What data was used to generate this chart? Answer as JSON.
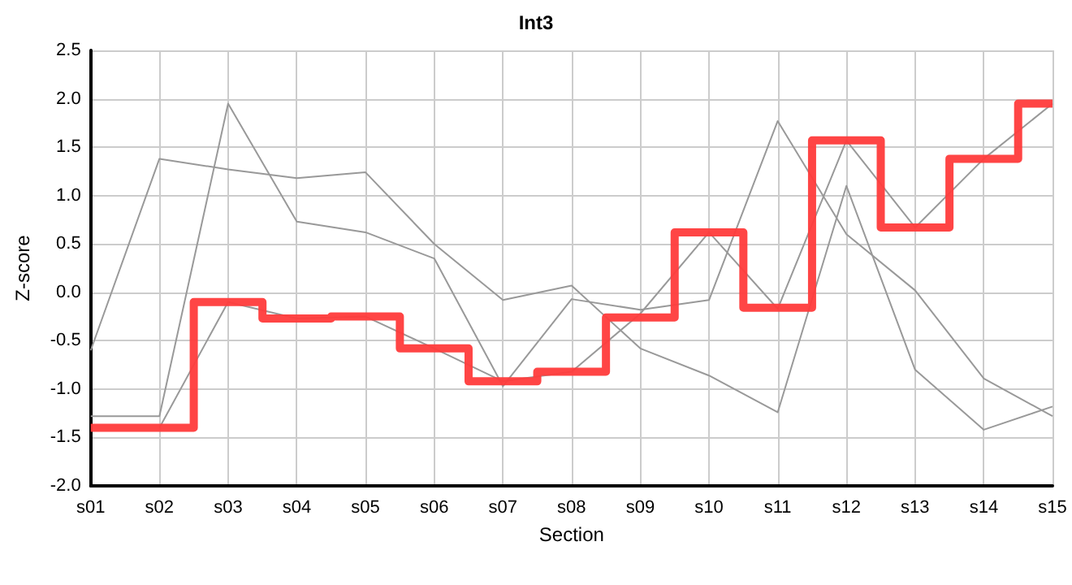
{
  "chart_data": {
    "type": "line",
    "title": "Int3",
    "xlabel": "Section",
    "ylabel": "Z-score",
    "categories": [
      "s01",
      "s02",
      "s03",
      "s04",
      "s05",
      "s06",
      "s07",
      "s08",
      "s09",
      "s10",
      "s11",
      "s12",
      "s13",
      "s14",
      "s15"
    ],
    "series": [
      {
        "color": "#999999",
        "values": [
          -0.6,
          1.38,
          1.27,
          1.18,
          1.24,
          0.5,
          -0.08,
          0.07,
          -0.58,
          -0.86,
          -1.24,
          1.1,
          -0.8,
          -1.42,
          -1.18
        ]
      },
      {
        "color": "#999999",
        "values": [
          -1.28,
          -1.28,
          1.95,
          0.73,
          0.62,
          0.35,
          -0.97,
          -0.07,
          -0.18,
          -0.08,
          1.77,
          0.6,
          0.02,
          -0.89,
          -1.28
        ]
      },
      {
        "color": "#999999",
        "values": [
          null,
          -1.4,
          -0.1,
          -0.27,
          -0.25,
          -0.58,
          -0.92,
          -0.82,
          -0.22,
          0.62,
          -0.17,
          1.57,
          0.67,
          1.38,
          1.95
        ]
      },
      {
        "type": "step",
        "color": "#ff3b3b",
        "values": [
          -1.4,
          -1.4,
          -0.1,
          -0.27,
          -0.25,
          -0.58,
          -0.92,
          -0.82,
          -0.26,
          0.62,
          -0.16,
          1.57,
          0.67,
          1.38,
          1.95
        ]
      }
    ],
    "ylim": [
      -2.0,
      2.5
    ],
    "yticks": [
      {
        "value": -2,
        "label": "-2.0"
      },
      {
        "value": -1.5,
        "label": "-1.5"
      },
      {
        "value": -1,
        "label": "-1.0"
      },
      {
        "value": -0.5,
        "label": "-0.5"
      },
      {
        "value": 0,
        "label": "0.0"
      },
      {
        "value": 0.5,
        "label": "0.5"
      },
      {
        "value": 1,
        "label": "1.0"
      },
      {
        "value": 1.5,
        "label": "1.5"
      },
      {
        "value": 2,
        "label": "2.0"
      },
      {
        "value": 2.5,
        "label": "2.5"
      }
    ],
    "grid": true,
    "marker": "none"
  }
}
